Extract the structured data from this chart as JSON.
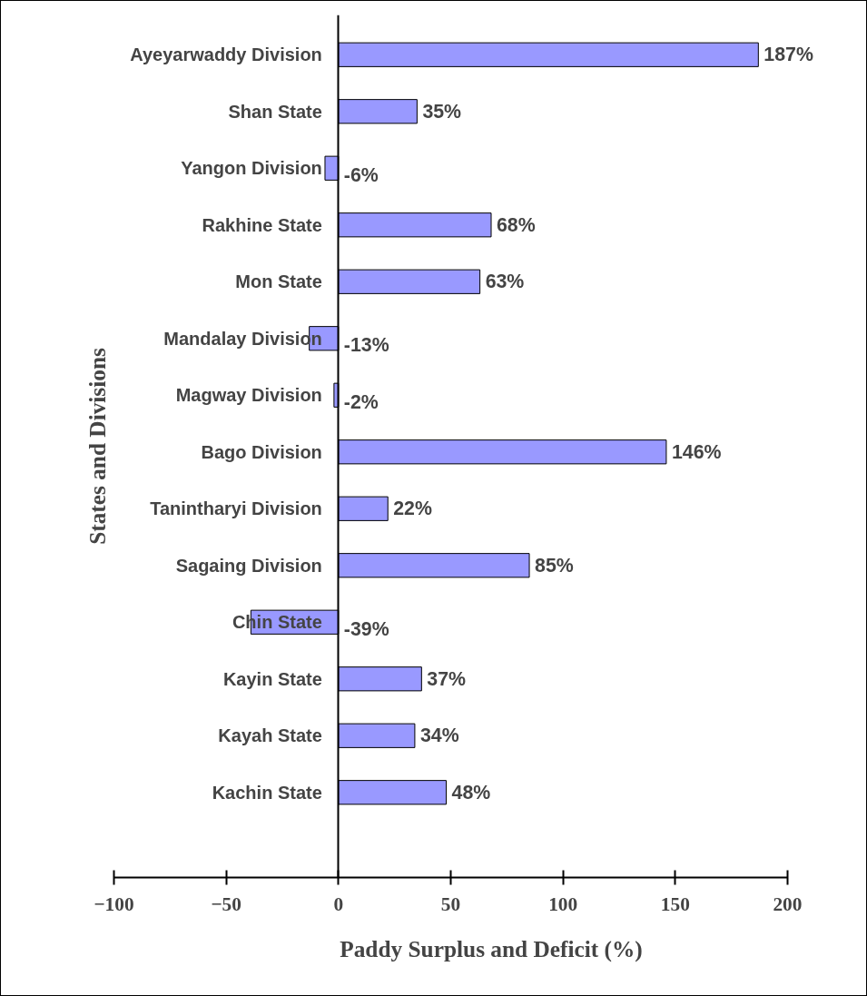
{
  "chart_data": {
    "type": "bar",
    "orientation": "horizontal",
    "xlabel": "Paddy Surplus and Deficit (%)",
    "ylabel": "States and Divisions",
    "categories": [
      "Ayeyarwaddy Division",
      "Shan State",
      "Yangon Division",
      "Rakhine State",
      "Mon State",
      "Mandalay Division",
      "Magway Division",
      "Bago Division",
      "Tanintharyi Division",
      "Sagaing Division",
      "Chin State",
      "Kayin State",
      "Kayah State",
      "Kachin State"
    ],
    "values": [
      187,
      35,
      -6,
      68,
      63,
      -13,
      -2,
      146,
      22,
      85,
      -39,
      37,
      34,
      48
    ],
    "value_labels": [
      "187%",
      "35%",
      "-6%",
      "68%",
      "63%",
      "-13%",
      "-2%",
      "146%",
      "22%",
      "85%",
      "-39%",
      "37%",
      "34%",
      "48%"
    ],
    "color": "#9999ff",
    "xlim": [
      -100,
      200
    ],
    "xticks": [
      -100,
      -50,
      0,
      50,
      100,
      150,
      200
    ],
    "grid": false
  }
}
